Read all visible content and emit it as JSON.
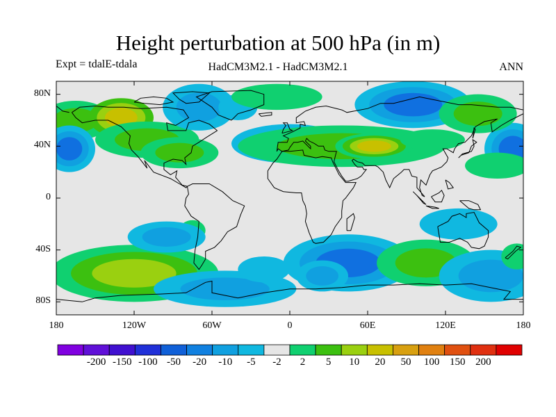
{
  "title": "Height perturbation at 500 hPa (in m)",
  "subtitle_left": "Expt = tdalE-tdala",
  "subtitle_center": "HadCM3M2.1 - HadCM3M2.1",
  "subtitle_right": "ANN",
  "map": {
    "projection": "equirectangular",
    "lon_range": [
      -180,
      180
    ],
    "lat_range": [
      -90,
      90
    ],
    "background_color": "#e6e6e6",
    "lat_ticks": [
      {
        "value": 80,
        "label": "80N"
      },
      {
        "value": 40,
        "label": "40N"
      },
      {
        "value": 0,
        "label": "0"
      },
      {
        "value": -40,
        "label": "40S"
      },
      {
        "value": -80,
        "label": "80S"
      }
    ],
    "lon_ticks": [
      {
        "value": -180,
        "label": "180"
      },
      {
        "value": -120,
        "label": "120W"
      },
      {
        "value": -60,
        "label": "60W"
      },
      {
        "value": 0,
        "label": "0"
      },
      {
        "value": 60,
        "label": "60E"
      },
      {
        "value": 120,
        "label": "120E"
      },
      {
        "value": 180,
        "label": "180"
      }
    ],
    "anomalies": [
      {
        "lon": -165,
        "lat": 60,
        "rlon": 28,
        "rlat": 15,
        "levels": [
          "#10d070",
          "#3cc010"
        ]
      },
      {
        "lon": -130,
        "lat": 62,
        "rlon": 25,
        "rlat": 15,
        "levels": [
          "#3cc010",
          "#9ad010",
          "#c8c000"
        ]
      },
      {
        "lon": -110,
        "lat": 45,
        "rlon": 40,
        "rlat": 14,
        "levels": [
          "#10d070",
          "#3cc010"
        ]
      },
      {
        "lon": -85,
        "lat": 35,
        "rlon": 30,
        "rlat": 12,
        "levels": [
          "#10d070",
          "#3cc010"
        ]
      },
      {
        "lon": -170,
        "lat": 38,
        "rlon": 20,
        "rlat": 18,
        "levels": [
          "#10b8e0",
          "#10a0e0",
          "#1070e0"
        ]
      },
      {
        "lon": 172,
        "lat": 38,
        "rlon": 22,
        "rlat": 20,
        "levels": [
          "#10b8e0",
          "#10a0e0",
          "#1070e0"
        ]
      },
      {
        "lon": -70,
        "lat": 70,
        "rlon": 28,
        "rlat": 18,
        "levels": [
          "#10b8e0",
          "#10a0e0"
        ]
      },
      {
        "lon": -40,
        "lat": 70,
        "rlon": 15,
        "rlat": 10,
        "levels": [
          "#10b8e0"
        ]
      },
      {
        "lon": -10,
        "lat": 78,
        "rlon": 35,
        "rlat": 10,
        "levels": [
          "#10d070"
        ]
      },
      {
        "lon": 0,
        "lat": 42,
        "rlon": 45,
        "rlat": 15,
        "levels": [
          "#10b8e0",
          "#10a0e0"
        ]
      },
      {
        "lon": 40,
        "lat": 40,
        "rlon": 80,
        "rlat": 16,
        "levels": [
          "#10d070",
          "#3cc010"
        ]
      },
      {
        "lon": 65,
        "lat": 40,
        "rlon": 30,
        "rlat": 10,
        "levels": [
          "#10d070",
          "#3cc010",
          "#9ad010",
          "#c8c000"
        ]
      },
      {
        "lon": 95,
        "lat": 72,
        "rlon": 45,
        "rlat": 18,
        "levels": [
          "#10b8e0",
          "#10a0e0",
          "#1070e0"
        ]
      },
      {
        "lon": 145,
        "lat": 65,
        "rlon": 30,
        "rlat": 15,
        "levels": [
          "#10d070",
          "#3cc010"
        ]
      },
      {
        "lon": 110,
        "lat": 45,
        "rlon": 25,
        "rlat": 8,
        "levels": [
          "#10d070"
        ]
      },
      {
        "lon": 160,
        "lat": 25,
        "rlon": 25,
        "rlat": 10,
        "levels": [
          "#10d070"
        ]
      },
      {
        "lon": -120,
        "lat": -58,
        "rlon": 65,
        "rlat": 22,
        "levels": [
          "#10d070",
          "#3cc010",
          "#9ad010"
        ]
      },
      {
        "lon": -75,
        "lat": -25,
        "rlon": 10,
        "rlat": 8,
        "levels": [
          "#10d070"
        ]
      },
      {
        "lon": -95,
        "lat": -30,
        "rlon": 30,
        "rlat": 12,
        "levels": [
          "#10b8e0",
          "#10a0e0"
        ]
      },
      {
        "lon": -50,
        "lat": -70,
        "rlon": 55,
        "rlat": 14,
        "levels": [
          "#10b8e0",
          "#10a0e0"
        ]
      },
      {
        "lon": -20,
        "lat": -55,
        "rlon": 20,
        "rlat": 10,
        "levels": [
          "#10b8e0"
        ]
      },
      {
        "lon": 45,
        "lat": -50,
        "rlon": 50,
        "rlat": 22,
        "levels": [
          "#10b8e0",
          "#10a0e0",
          "#1070e0"
        ]
      },
      {
        "lon": 25,
        "lat": -60,
        "rlon": 20,
        "rlat": 12,
        "levels": [
          "#10b8e0",
          "#10a0e0"
        ]
      },
      {
        "lon": 105,
        "lat": -50,
        "rlon": 38,
        "rlat": 18,
        "levels": [
          "#10d070",
          "#3cc010"
        ]
      },
      {
        "lon": 130,
        "lat": -20,
        "rlon": 30,
        "rlat": 12,
        "levels": [
          "#10b8e0"
        ]
      },
      {
        "lon": 155,
        "lat": -60,
        "rlon": 40,
        "rlat": 20,
        "levels": [
          "#10b8e0",
          "#10a0e0"
        ]
      },
      {
        "lon": 175,
        "lat": -45,
        "rlon": 12,
        "rlat": 10,
        "levels": [
          "#10d070"
        ]
      }
    ]
  },
  "colorbar": {
    "colors": [
      "#8000e0",
      "#6010d8",
      "#4010d0",
      "#2030d8",
      "#1060d8",
      "#1080e0",
      "#10a0e0",
      "#10b8e0",
      "#e6e6e6",
      "#10d070",
      "#3cc010",
      "#9ad010",
      "#c8c000",
      "#d8a010",
      "#e08010",
      "#e05010",
      "#e03010",
      "#e00000"
    ],
    "labels": [
      "-200",
      "-150",
      "-100",
      "-50",
      "-20",
      "-10",
      "-5",
      "-2",
      "2",
      "5",
      "10",
      "20",
      "50",
      "100",
      "150",
      "200"
    ]
  }
}
